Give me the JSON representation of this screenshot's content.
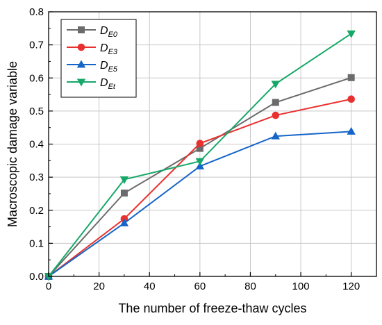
{
  "chart_data": {
    "type": "line",
    "title": "",
    "xlabel": "The number of freeze-thaw cycles",
    "ylabel": "Macroscopic damage variable",
    "xlim": [
      0,
      130
    ],
    "ylim": [
      0,
      0.8
    ],
    "x_ticks": [
      "0",
      "20",
      "40",
      "60",
      "80",
      "100",
      "120"
    ],
    "y_ticks": [
      "0.0",
      "0.1",
      "0.2",
      "0.3",
      "0.4",
      "0.5",
      "0.6",
      "0.7",
      "0.8"
    ],
    "grid": true,
    "legend_position": "top-left",
    "x": [
      0,
      30,
      60,
      90,
      120
    ],
    "series": [
      {
        "name": "D",
        "sub": "E0",
        "color": "#6b6b6b",
        "marker": "square",
        "values": [
          0,
          0.252,
          0.387,
          0.526,
          0.601
        ]
      },
      {
        "name": "D",
        "sub": "E3",
        "color": "#e8302f",
        "marker": "circle",
        "values": [
          0,
          0.174,
          0.402,
          0.487,
          0.536
        ]
      },
      {
        "name": "D",
        "sub": "E5",
        "color": "#1565c8",
        "marker": "triangle-up",
        "values": [
          0,
          0.161,
          0.333,
          0.424,
          0.438
        ]
      },
      {
        "name": "D",
        "sub": "Et",
        "color": "#16a868",
        "marker": "triangle-down",
        "values": [
          0,
          0.293,
          0.348,
          0.582,
          0.734
        ]
      }
    ]
  }
}
